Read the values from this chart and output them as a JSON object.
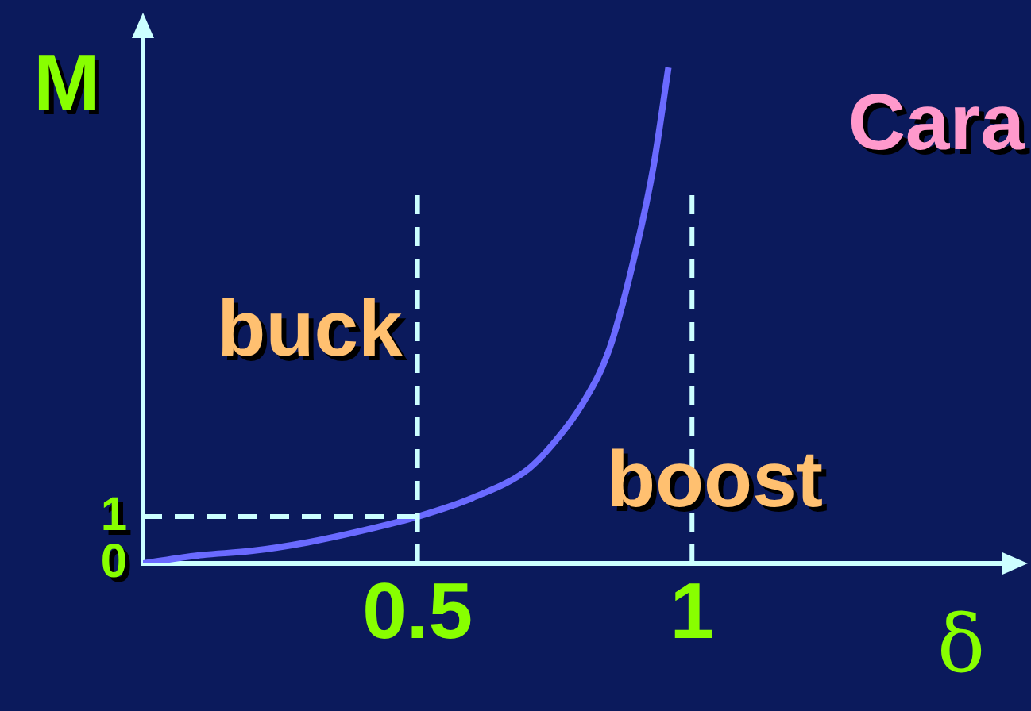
{
  "chart_data": {
    "type": "line",
    "xlabel": "δ",
    "ylabel": "M",
    "x": [
      0,
      0.1,
      0.2,
      0.3,
      0.4,
      0.5,
      0.6,
      0.7,
      0.75,
      0.8,
      0.85,
      0.9,
      0.93,
      0.957
    ],
    "series": [
      {
        "color": "#6a6aff",
        "values": [
          0,
          0.17,
          0.27,
          0.45,
          0.7,
          1.0,
          1.4,
          2.0,
          2.6,
          3.4,
          4.6,
          6.8,
          8.5,
          10.6
        ]
      }
    ],
    "xlim": [
      0,
      1.6
    ],
    "xticks": [
      0.5,
      1
    ],
    "ylim": [
      0,
      11.5
    ],
    "yticks": [
      0,
      1
    ],
    "ref_lines": [
      {
        "axis": "x",
        "value": 0.5,
        "color": "#ccffff",
        "line_style": "dashed"
      },
      {
        "axis": "x",
        "value": 1,
        "color": "#ccffff",
        "line_style": "dashed"
      },
      {
        "axis": "y",
        "value": 1,
        "color": "#ccffff",
        "line_style": "dashed"
      }
    ],
    "annotations": [
      "buck",
      "boost",
      "Cara"
    ],
    "grid": false,
    "legend": false,
    "marker": "none",
    "line_style": "solid"
  }
}
